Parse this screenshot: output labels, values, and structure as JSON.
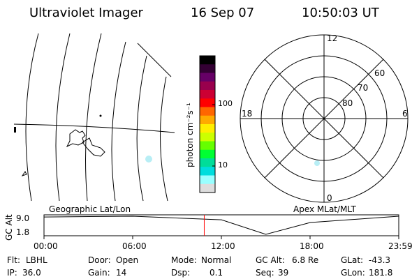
{
  "header": {
    "instrument": "Ultraviolet Imager",
    "date": "16 Sep 07",
    "time": "10:50:03 UT"
  },
  "colorbar": {
    "label": "photon cm⁻²s⁻¹",
    "ticks": [
      {
        "label": "100"
      },
      {
        "label": "10"
      }
    ],
    "colors": [
      "#000000",
      "#330033",
      "#660066",
      "#99004d",
      "#cc0033",
      "#ff0000",
      "#ff6600",
      "#ffaa00",
      "#ffee00",
      "#ccff00",
      "#66ff00",
      "#00ff33",
      "#00dd99",
      "#00dddd",
      "#99ffff",
      "#dddddd"
    ]
  },
  "polar_plot": {
    "hour_labels": {
      "top": "12",
      "left": "18",
      "right": "6",
      "bottom": "0"
    },
    "lat_labels": [
      "60",
      "70",
      "80"
    ],
    "subtitle": "Apex MLat/MLT"
  },
  "geo_plot": {
    "subtitle": "Geographic Lat/Lon"
  },
  "altitude_panel": {
    "ylabel": "GC Alt",
    "yticks": [
      "9.0",
      "1.8"
    ],
    "xticks": [
      "00:00",
      "06:00",
      "12:00",
      "18:00",
      "23:59"
    ]
  },
  "status": {
    "row1": [
      {
        "key": "Flt:",
        "value": "LBHL"
      },
      {
        "key": "Door:",
        "value": "Open"
      },
      {
        "key": "Mode:",
        "value": "Normal"
      },
      {
        "key": "GC Alt:",
        "value": "6.8 Re"
      },
      {
        "key": "GLat:",
        "value": "-43.3"
      }
    ],
    "row2": [
      {
        "key": "IP:",
        "value": "36.0"
      },
      {
        "key": "Gain:",
        "value": "14"
      },
      {
        "key": "Dsp:",
        "value": "0.1"
      },
      {
        "key": "Seq:",
        "value": "39"
      },
      {
        "key": "GLon:",
        "value": "181.8"
      }
    ]
  },
  "chart_data": {
    "type": "line",
    "title": "",
    "xlabel": "",
    "ylabel": "GC Alt",
    "x": [
      "00:00",
      "06:00",
      "12:00",
      "15:00",
      "18:00",
      "23:59"
    ],
    "series": [
      {
        "values": [
          8.7,
          9.0,
          7.6,
          1.8,
          6.5,
          9.0
        ]
      }
    ],
    "current_time": "10:50",
    "ylim": [
      1.8,
      9.0
    ]
  }
}
